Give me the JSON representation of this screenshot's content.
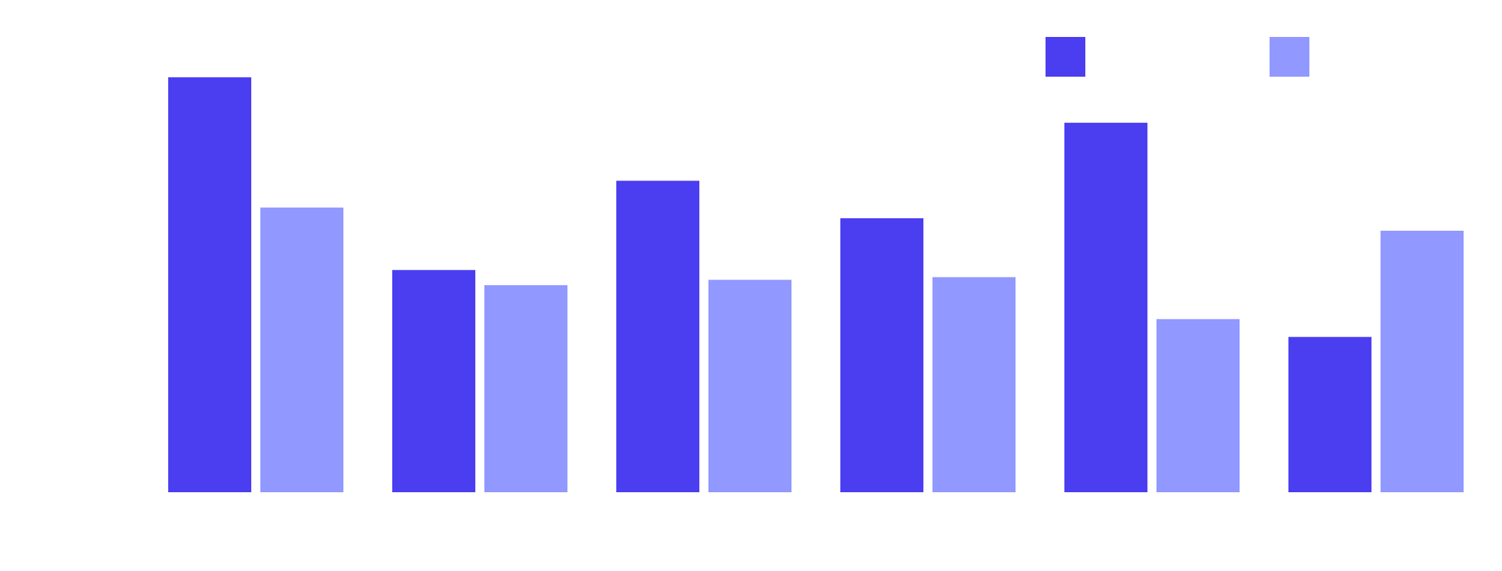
{
  "chart_data": {
    "type": "bar",
    "title": "",
    "xlabel": "",
    "ylabel": "",
    "categories": [
      "",
      "",
      "",
      "",
      "",
      ""
    ],
    "series": [
      {
        "color": "#4b3ef0",
        "values": [
          465,
          249,
          349,
          307,
          414,
          174
        ]
      },
      {
        "color": "#9198ff",
        "values": [
          319,
          232,
          238,
          241,
          194,
          293
        ]
      }
    ],
    "ylim": [
      0,
      500
    ],
    "grid": false,
    "legend": {
      "position": "top-right"
    }
  }
}
